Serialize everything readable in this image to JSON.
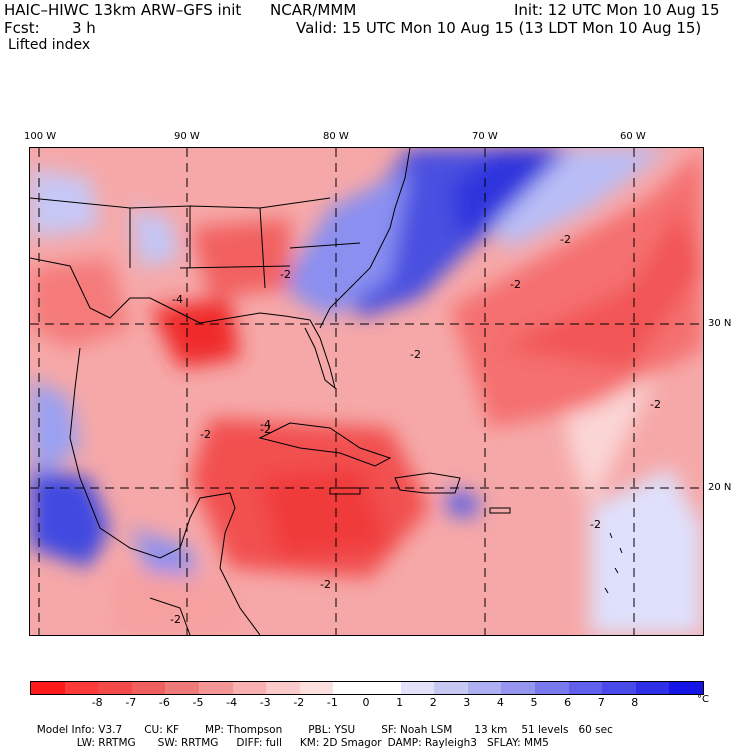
{
  "header": {
    "model": "HAIC–HIWC 13km ARW–GFS init",
    "org": "NCAR/MMM",
    "init": "Init: 12 UTC Mon 10 Aug 15",
    "fcst_label": "Fcst:",
    "fcst_value": "3 h",
    "valid": "Valid: 15 UTC Mon 10 Aug 15 (13 LDT Mon 10 Aug 15)",
    "field": "Lifted index"
  },
  "map": {
    "lon_labels": [
      "100 W",
      "90 W",
      "80 W",
      "70 W",
      "60 W"
    ],
    "lat_labels": [
      "30 N",
      "20 N"
    ],
    "contour_labels": [
      "-2",
      "-2",
      "-2",
      "-4",
      "-2",
      "-2",
      "-2",
      "-4",
      "-2",
      "-2",
      "-2",
      "-2"
    ],
    "colors": {
      "neg_strong": "#ff3030",
      "neg_mid": "#f27a7a",
      "neg_light": "#f9c4c4",
      "neutral": "#ffffff",
      "pos_light": "#c8c8f5",
      "pos_mid": "#7878ec",
      "pos_strong": "#2a2ae8"
    }
  },
  "colorbar": {
    "colors": [
      "#ff1a1a",
      "#ff3a3a",
      "#f54a4a",
      "#f06060",
      "#f07a7a",
      "#f59595",
      "#f8b0b0",
      "#fbcaca",
      "#fde0e0",
      "#ffffff",
      "#ffffff",
      "#e2e2fb",
      "#c8c8f5",
      "#aeaef2",
      "#9696f0",
      "#7a7aee",
      "#6060ec",
      "#4a4aea",
      "#2f2fe8",
      "#1515e5"
    ],
    "labels": [
      "-8",
      "-7",
      "-6",
      "-5",
      "-4",
      "-3",
      "-2",
      "-1",
      "0",
      "1",
      "2",
      "3",
      "4",
      "5",
      "6",
      "7",
      "8"
    ],
    "unit": "°C"
  },
  "footer": {
    "line1": [
      "Model Info: V3.7",
      "CU: KF",
      "MP: Thompson",
      "PBL: YSU",
      "SF: Noah LSM",
      "13 km",
      "51 levels",
      "60 sec"
    ],
    "line2": [
      "LW: RRTMG",
      "SW: RRTMG",
      "DIFF: full",
      "KM: 2D Smagor",
      "DAMP: Rayleigh3",
      "SFLAY: MM5"
    ]
  }
}
